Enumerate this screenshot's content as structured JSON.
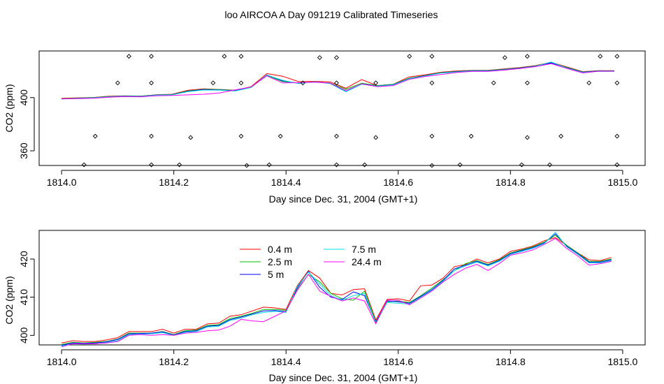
{
  "title": "loo AIRCOA A  Day 091219  Calibrated Timeseries",
  "chart_data": [
    {
      "type": "line",
      "name": "top",
      "xlabel": "Day since Dec. 31, 2004 (GMT+1)",
      "ylabel": "CO2 (ppm)",
      "xlim": [
        1813.96,
        1815.04
      ],
      "ylim": [
        349,
        435
      ],
      "x_ticks": [
        "1814.0",
        "1814.2",
        "1814.4",
        "1814.6",
        "1814.8",
        "1815.0"
      ],
      "x_tick_values": [
        1814.0,
        1814.2,
        1814.4,
        1814.6,
        1814.8,
        1815.0
      ],
      "y_ticks": [
        "360",
        "400"
      ],
      "y_tick_values": [
        360,
        400
      ],
      "grid": false,
      "series_colors": [
        "#ff0000",
        "#00c000",
        "#0000ff",
        "#00e0e0",
        "#ff00ff"
      ],
      "points": {
        "marker": "open-diamond",
        "x": [
          1814.12,
          1814.16,
          1814.29,
          1814.32,
          1814.46,
          1814.49,
          1814.62,
          1814.66,
          1814.79,
          1814.83,
          1814.96,
          1814.99,
          1814.1,
          1814.16,
          1814.27,
          1814.32,
          1814.43,
          1814.49,
          1814.56,
          1814.66,
          1814.77,
          1814.83,
          1814.94,
          1814.99,
          1814.06,
          1814.16,
          1814.23,
          1814.32,
          1814.39,
          1814.49,
          1814.56,
          1814.66,
          1814.73,
          1814.83,
          1814.89,
          1814.99,
          1814.04,
          1814.16,
          1814.21,
          1814.33,
          1814.37,
          1814.49,
          1814.54,
          1814.66,
          1814.71,
          1814.82,
          1814.87,
          1814.99
        ],
        "y": [
          431,
          431,
          431,
          431,
          430,
          430,
          431,
          431,
          430,
          431,
          431,
          431,
          411,
          411,
          411,
          411,
          411,
          411,
          411,
          411,
          411,
          411,
          411,
          411,
          371,
          371,
          370,
          371,
          371,
          371,
          370,
          371,
          371,
          370,
          371,
          371,
          349.5,
          349.5,
          349.5,
          349,
          349.5,
          349.5,
          349.5,
          349,
          349.5,
          349.5,
          349.5,
          349.5
        ]
      },
      "series": [
        {
          "values": [
            399.5,
            399.8,
            400.1,
            401.0,
            401.3,
            401.1,
            402.1,
            402.5,
            405.5,
            406.5,
            406.1,
            405.5,
            408.2,
            418.0,
            416.0,
            412.0,
            412.2,
            411.8,
            407.0,
            413.5,
            409.0,
            410.0,
            415.5,
            417.0,
            419.0,
            420.0,
            420.5,
            420.5,
            421.5,
            422.5,
            424.0,
            426.5,
            423.0,
            419.5,
            420.2,
            420.2
          ]
        },
        {
          "values": [
            399.2,
            399.6,
            400.0,
            400.8,
            401.2,
            401.0,
            402.0,
            402.3,
            405.0,
            406.2,
            406.0,
            405.3,
            408.0,
            416.5,
            412.0,
            411.0,
            411.5,
            411.0,
            406.2,
            410.8,
            409.0,
            410.0,
            414.5,
            416.6,
            418.7,
            419.6,
            420.3,
            420.3,
            421.2,
            422.3,
            423.8,
            426.2,
            422.6,
            419.2,
            420.1,
            420.1
          ]
        },
        {
          "values": [
            399.0,
            399.4,
            399.8,
            400.6,
            401.0,
            400.9,
            401.8,
            402.1,
            404.7,
            406.0,
            405.8,
            405.1,
            407.7,
            417.0,
            412.5,
            410.8,
            411.8,
            410.7,
            404.5,
            410.3,
            408.7,
            409.7,
            414.2,
            416.4,
            418.5,
            419.4,
            420.1,
            420.1,
            421.0,
            422.1,
            423.6,
            426.0,
            422.3,
            419.0,
            419.9,
            419.9
          ]
        },
        {
          "values": [
            399.0,
            399.3,
            399.7,
            400.5,
            400.9,
            400.8,
            401.7,
            402.0,
            404.5,
            405.7,
            405.6,
            404.9,
            407.5,
            416.8,
            413.0,
            410.5,
            411.9,
            410.5,
            404.3,
            410.0,
            408.5,
            409.5,
            414.0,
            416.2,
            418.3,
            419.2,
            419.9,
            419.9,
            420.8,
            421.9,
            423.4,
            426.7,
            422.1,
            418.8,
            419.7,
            419.7
          ]
        },
        {
          "values": [
            399.1,
            399.2,
            399.5,
            400.3,
            400.7,
            400.5,
            401.4,
            401.6,
            402.0,
            402.5,
            403.5,
            405.8,
            407.9,
            416.3,
            411.0,
            411.2,
            411.5,
            410.9,
            405.2,
            410.3,
            408.2,
            409.0,
            413.6,
            415.8,
            417.3,
            418.8,
            419.7,
            419.7,
            420.6,
            421.8,
            423.2,
            425.5,
            421.8,
            418.5,
            419.8,
            419.8
          ]
        }
      ]
    },
    {
      "type": "line",
      "name": "bottom",
      "xlabel": "Day since Dec. 31, 2004 (GMT+1)",
      "ylabel": "CO2 (ppm)",
      "xlim": [
        1813.96,
        1815.04
      ],
      "ylim": [
        397.5,
        427.5
      ],
      "x_ticks": [
        "1814.0",
        "1814.2",
        "1814.4",
        "1814.6",
        "1814.8",
        "1815.0"
      ],
      "x_tick_values": [
        1814.0,
        1814.2,
        1814.4,
        1814.6,
        1814.8,
        1815.0
      ],
      "y_ticks": [
        "400",
        "410",
        "420"
      ],
      "y_tick_values": [
        400,
        410,
        420
      ],
      "grid": false,
      "legend": {
        "placement": "top-center",
        "entries": [
          {
            "label": "0.4 m",
            "color": "#ff0000"
          },
          {
            "label": "2.5 m",
            "color": "#00c000"
          },
          {
            "label": "5 m",
            "color": "#0000ff"
          },
          {
            "label": "7.5 m",
            "color": "#00e0e0"
          },
          {
            "label": "24.4 m",
            "color": "#ff00ff"
          }
        ]
      },
      "x": [
        1814.0,
        1814.02,
        1814.04,
        1814.06,
        1814.08,
        1814.1,
        1814.12,
        1814.14,
        1814.16,
        1814.18,
        1814.2,
        1814.22,
        1814.24,
        1814.26,
        1814.28,
        1814.3,
        1814.32,
        1814.34,
        1814.36,
        1814.38,
        1814.4,
        1814.42,
        1814.44,
        1814.46,
        1814.48,
        1814.5,
        1814.52,
        1814.54,
        1814.56,
        1814.58,
        1814.6,
        1814.62,
        1814.64,
        1814.66,
        1814.68,
        1814.7,
        1814.72,
        1814.74,
        1814.76,
        1814.78,
        1814.8,
        1814.82,
        1814.84,
        1814.86,
        1814.88,
        1814.9,
        1814.92,
        1814.94,
        1814.96,
        1814.98
      ],
      "series": [
        {
          "name": "0.4 m",
          "color": "#ff0000",
          "values": [
            398.0,
            398.6,
            398.4,
            398.4,
            398.8,
            399.4,
            401.0,
            401.0,
            401.0,
            401.6,
            400.6,
            401.6,
            401.6,
            403.0,
            403.2,
            405.0,
            405.4,
            406.4,
            407.4,
            407.2,
            406.8,
            413.0,
            417.0,
            415.0,
            411.0,
            410.6,
            412.0,
            412.2,
            404.0,
            409.4,
            409.6,
            409.0,
            413.0,
            413.2,
            415.0,
            418.0,
            418.6,
            420.0,
            419.0,
            420.0,
            422.0,
            422.6,
            423.4,
            424.8,
            425.6,
            423.6,
            421.6,
            419.8,
            419.6,
            420.4
          ]
        },
        {
          "name": "2.5 m",
          "color": "#00c000",
          "values": [
            397.6,
            398.2,
            398.0,
            398.2,
            398.4,
            399.0,
            400.6,
            400.6,
            400.6,
            401.0,
            400.2,
            401.2,
            401.4,
            402.6,
            402.8,
            404.4,
            405.0,
            405.8,
            406.8,
            406.8,
            406.6,
            412.0,
            416.0,
            414.0,
            411.0,
            409.6,
            409.2,
            411.6,
            403.6,
            408.8,
            409.0,
            408.6,
            410.4,
            412.4,
            414.6,
            417.0,
            418.8,
            419.6,
            418.6,
            419.8,
            421.6,
            422.4,
            423.2,
            424.4,
            426.2,
            423.6,
            421.6,
            419.4,
            419.4,
            420.0
          ]
        },
        {
          "name": "5 m",
          "color": "#0000ff",
          "values": [
            397.4,
            398.0,
            397.9,
            398.0,
            398.3,
            398.9,
            400.4,
            400.5,
            400.6,
            400.9,
            400.1,
            401.0,
            401.2,
            402.4,
            402.6,
            404.1,
            404.8,
            405.6,
            406.4,
            406.5,
            406.2,
            412.4,
            416.8,
            412.6,
            410.0,
            409.4,
            411.4,
            410.4,
            403.4,
            409.0,
            408.8,
            408.4,
            410.2,
            412.0,
            414.4,
            417.4,
            418.4,
            419.4,
            418.4,
            419.6,
            421.4,
            422.2,
            423.0,
            424.2,
            426.6,
            423.4,
            421.4,
            419.2,
            419.2,
            419.8
          ]
        },
        {
          "name": "7.5 m",
          "color": "#00e0e0",
          "values": [
            397.2,
            397.8,
            397.7,
            397.8,
            398.1,
            398.6,
            400.2,
            400.3,
            400.4,
            400.7,
            400.0,
            400.8,
            401.0,
            402.2,
            402.4,
            403.9,
            404.5,
            405.4,
            406.0,
            406.3,
            406.0,
            412.8,
            416.6,
            413.4,
            410.4,
            409.2,
            410.4,
            411.0,
            403.2,
            408.6,
            408.4,
            408.2,
            410.0,
            411.8,
            414.2,
            417.0,
            418.2,
            419.2,
            418.2,
            419.4,
            421.2,
            422.0,
            422.8,
            424.0,
            427.0,
            423.2,
            421.2,
            419.0,
            419.0,
            419.6
          ]
        },
        {
          "name": "24.4 m",
          "color": "#ff00ff",
          "values": [
            397.0,
            397.8,
            397.8,
            397.8,
            398.0,
            398.4,
            400.0,
            400.2,
            400.0,
            400.2,
            400.0,
            400.6,
            400.8,
            401.2,
            401.4,
            402.4,
            404.2,
            403.8,
            403.6,
            405.0,
            406.4,
            411.8,
            416.0,
            411.6,
            410.2,
            409.0,
            409.8,
            409.0,
            403.0,
            409.2,
            409.2,
            408.0,
            409.8,
            411.6,
            414.0,
            416.0,
            417.6,
            418.6,
            417.0,
            418.8,
            421.0,
            421.6,
            422.4,
            423.8,
            425.4,
            422.8,
            420.8,
            418.4,
            418.8,
            419.4
          ]
        }
      ]
    }
  ]
}
